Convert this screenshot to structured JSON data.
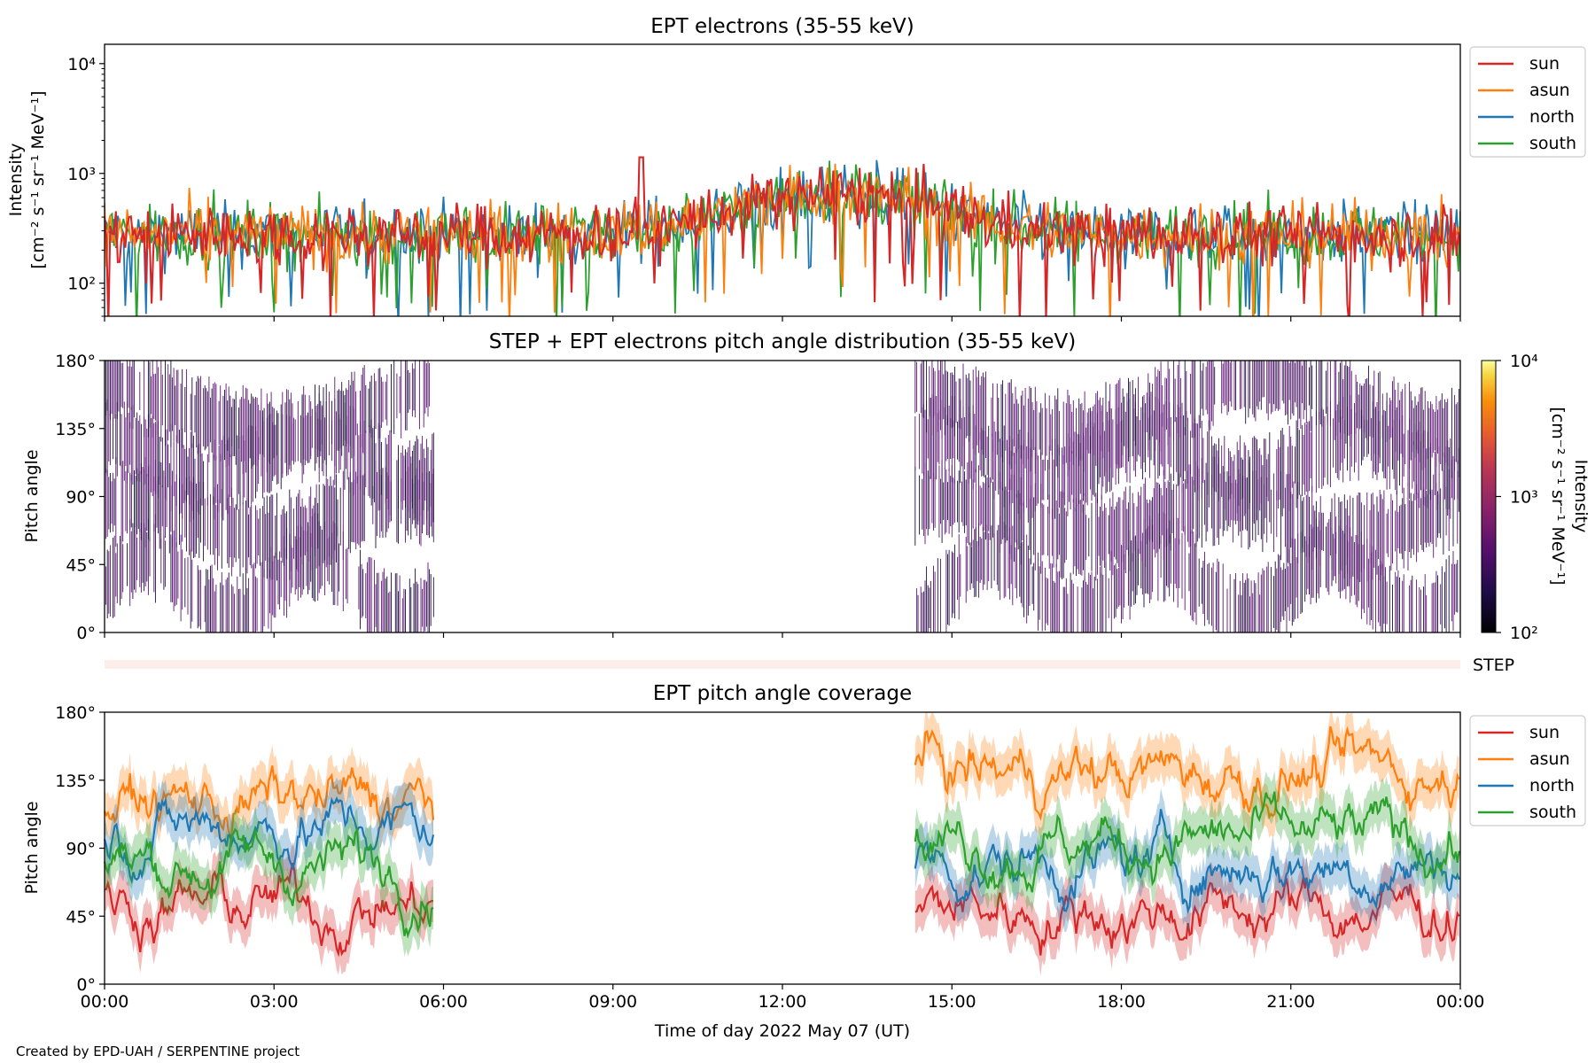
{
  "footer": {
    "credit": "Created by EPD-UAH / SERPENTINE project"
  },
  "x_axis": {
    "label": "Time of day 2022 May 07 (UT)",
    "tick_labels": [
      "00:00",
      "03:00",
      "06:00",
      "09:00",
      "12:00",
      "15:00",
      "18:00",
      "21:00",
      "00:00"
    ],
    "range_hours": [
      0,
      24
    ]
  },
  "colors": {
    "sun": "#d62728",
    "asun": "#ff7f0e",
    "north": "#1f77b4",
    "south": "#2ca02c",
    "step_band": "#fdeee9",
    "pad_fill": "#5b1672",
    "pad_dark": "#1a0c3a"
  },
  "colorbar": {
    "title": "Intensity",
    "units": "[cm⁻² s⁻¹ sr⁻¹ MeV⁻¹]",
    "tick_labels": [
      "10⁴",
      "10³",
      "10²"
    ],
    "range": [
      100,
      10000
    ],
    "scale": "log",
    "colormap": "inferno"
  },
  "chart_data": [
    {
      "type": "line",
      "title": "EPT electrons (35-55 keV)",
      "ylabel_line1": "Intensity",
      "ylabel_line2": "[cm⁻² s⁻¹ sr⁻¹ MeV⁻¹]",
      "yscale": "log",
      "ylim": [
        50,
        15000
      ],
      "ytick_labels": [
        "10⁴",
        "10³",
        "10²"
      ],
      "ytick_values": [
        10000,
        1000,
        100
      ],
      "legend": {
        "position": "outside-right-top",
        "entries": [
          "sun",
          "asun",
          "north",
          "south"
        ]
      },
      "series_summary": {
        "baseline_intensity": 280,
        "peak_time_hours": 13.0,
        "peak_intensity": 700,
        "max_spike": 1400,
        "max_spike_time_hours": 9.5
      },
      "series": [
        {
          "name": "sun"
        },
        {
          "name": "asun"
        },
        {
          "name": "north"
        },
        {
          "name": "south"
        }
      ]
    },
    {
      "type": "heatmap",
      "title": "STEP + EPT electrons pitch angle distribution (35-55 keV)",
      "ylabel": "Pitch angle",
      "ytick_labels": [
        "180°",
        "135°",
        "90°",
        "45°",
        "0°"
      ],
      "ylim": [
        0,
        180
      ],
      "data_intervals_hours": [
        [
          0,
          5.85
        ],
        [
          14.35,
          24
        ]
      ],
      "intensity_range": [
        100,
        10000
      ]
    },
    {
      "type": "band",
      "label": "STEP"
    },
    {
      "type": "line",
      "title": "EPT pitch angle coverage",
      "ylabel": "Pitch angle",
      "ytick_labels": [
        "180°",
        "135°",
        "90°",
        "45°",
        "0°"
      ],
      "ylim": [
        0,
        180
      ],
      "legend": {
        "position": "outside-right-top",
        "entries": [
          "sun",
          "asun",
          "north",
          "south"
        ]
      },
      "data_intervals_hours": [
        [
          0,
          5.85
        ],
        [
          14.35,
          24
        ]
      ],
      "series": [
        {
          "name": "sun",
          "mean_deg_seg1": 52,
          "mean_deg_seg2": 50
        },
        {
          "name": "asun",
          "mean_deg_seg1": 120,
          "mean_deg_seg2": 140
        },
        {
          "name": "north",
          "mean_deg_seg1": 105,
          "mean_deg_seg2": 80
        },
        {
          "name": "south",
          "mean_deg_seg1": 80,
          "mean_deg_seg2": 95
        }
      ]
    }
  ]
}
